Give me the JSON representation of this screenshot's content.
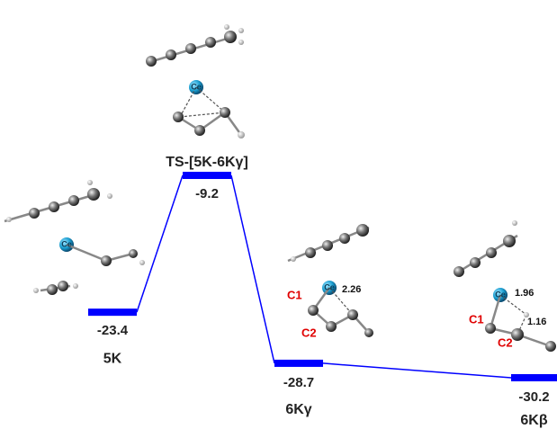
{
  "chart_data": {
    "type": "energy_profile",
    "categories": [
      "5K",
      "TS-[5K-6Kγ]",
      "6Kγ",
      "6Kβ"
    ],
    "values": [
      -23.4,
      -9.2,
      -28.7,
      -30.2
    ],
    "color": "#0000ff",
    "annotations": [
      "Ce",
      "Ce",
      "Ce",
      "Ce",
      "C1",
      "C2",
      "2.26",
      "C1",
      "C2",
      "1.96",
      "1.16"
    ]
  }
}
